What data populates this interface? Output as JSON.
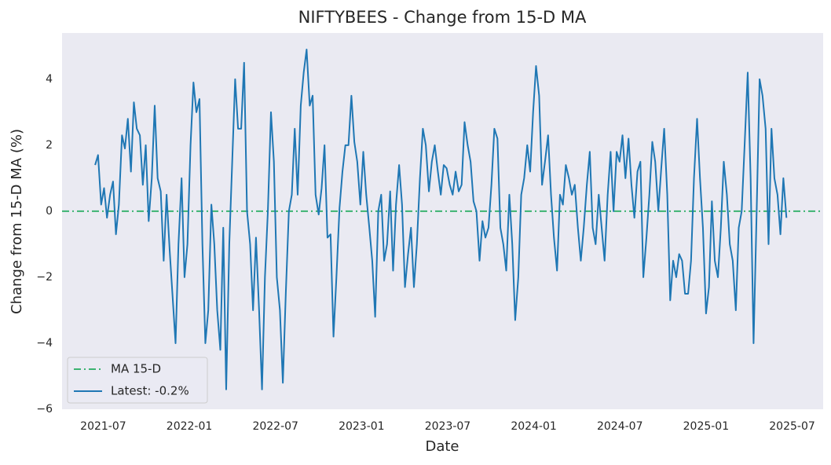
{
  "chart_data": {
    "type": "line",
    "title": "NIFTYBEES - Change from 15-D MA",
    "x_label": "Date",
    "y_label": "Change from 15-D MA (%)",
    "xlim": [
      2021.261,
      2025.68
    ],
    "xticks": [
      {
        "value": 2021.5,
        "label": "2021-07"
      },
      {
        "value": 2022.0,
        "label": "2022-01"
      },
      {
        "value": 2022.5,
        "label": "2022-07"
      },
      {
        "value": 2023.0,
        "label": "2023-01"
      },
      {
        "value": 2023.5,
        "label": "2023-07"
      },
      {
        "value": 2024.0,
        "label": "2024-01"
      },
      {
        "value": 2024.5,
        "label": "2024-07"
      },
      {
        "value": 2025.0,
        "label": "2025-01"
      },
      {
        "value": 2025.5,
        "label": "2025-07"
      }
    ],
    "ylim": [
      -6,
      5.4
    ],
    "yticks": [
      {
        "value": -6,
        "label": "−6"
      },
      {
        "value": -4,
        "label": "−4"
      },
      {
        "value": -2,
        "label": "−2"
      },
      0,
      2,
      4
    ],
    "grid": false,
    "legend": "lower left",
    "reference_line": {
      "name": "MA 15-D",
      "value": 0,
      "color": "#3cb371",
      "style": "dashdot"
    },
    "x": [
      2021.453,
      2021.47,
      2021.488,
      2021.505,
      2021.522,
      2021.54,
      2021.557,
      2021.574,
      2021.591,
      2021.609,
      2021.626,
      2021.643,
      2021.661,
      2021.678,
      2021.695,
      2021.713,
      2021.73,
      2021.747,
      2021.764,
      2021.782,
      2021.799,
      2021.816,
      2021.834,
      2021.851,
      2021.868,
      2021.886,
      2021.903,
      2021.92,
      2021.937,
      2021.955,
      2021.972,
      2021.989,
      2022.007,
      2022.024,
      2022.041,
      2022.059,
      2022.076,
      2022.093,
      2022.11,
      2022.128,
      2022.145,
      2022.162,
      2022.18,
      2022.197,
      2022.214,
      2022.232,
      2022.249,
      2022.266,
      2022.283,
      2022.301,
      2022.318,
      2022.335,
      2022.353,
      2022.37,
      2022.387,
      2022.405,
      2022.422,
      2022.439,
      2022.456,
      2022.474,
      2022.491,
      2022.508,
      2022.526,
      2022.543,
      2022.56,
      2022.578,
      2022.595,
      2022.612,
      2022.629,
      2022.647,
      2022.664,
      2022.681,
      2022.699,
      2022.716,
      2022.733,
      2022.751,
      2022.768,
      2022.785,
      2022.802,
      2022.82,
      2022.837,
      2022.854,
      2022.872,
      2022.889,
      2022.906,
      2022.924,
      2022.941,
      2022.958,
      2022.975,
      2022.993,
      2023.01,
      2023.027,
      2023.045,
      2023.062,
      2023.079,
      2023.097,
      2023.114,
      2023.131,
      2023.148,
      2023.166,
      2023.183,
      2023.2,
      2023.218,
      2023.235,
      2023.252,
      2023.27,
      2023.287,
      2023.304,
      2023.321,
      2023.339,
      2023.356,
      2023.373,
      2023.391,
      2023.408,
      2023.425,
      2023.443,
      2023.46,
      2023.477,
      2023.494,
      2023.512,
      2023.529,
      2023.546,
      2023.564,
      2023.581,
      2023.598,
      2023.616,
      2023.633,
      2023.65,
      2023.667,
      2023.685,
      2023.702,
      2023.719,
      2023.737,
      2023.754,
      2023.771,
      2023.789,
      2023.806,
      2023.823,
      2023.84,
      2023.858,
      2023.875,
      2023.892,
      2023.91,
      2023.927,
      2023.944,
      2023.962,
      2023.979,
      2023.996,
      2024.013,
      2024.031,
      2024.048,
      2024.065,
      2024.083,
      2024.1,
      2024.117,
      2024.135,
      2024.152,
      2024.169,
      2024.186,
      2024.204,
      2024.221,
      2024.238,
      2024.256,
      2024.273,
      2024.29,
      2024.308,
      2024.325,
      2024.342,
      2024.359,
      2024.377,
      2024.394,
      2024.411,
      2024.429,
      2024.446,
      2024.463,
      2024.481,
      2024.498,
      2024.515,
      2024.532,
      2024.55,
      2024.567,
      2024.584,
      2024.602,
      2024.619,
      2024.636,
      2024.654,
      2024.671,
      2024.688,
      2024.705,
      2024.723,
      2024.74,
      2024.757,
      2024.775,
      2024.792,
      2024.809,
      2024.827,
      2024.844,
      2024.861,
      2024.878,
      2024.896,
      2024.913,
      2024.93,
      2024.948,
      2024.965,
      2024.982,
      2025.0,
      2025.017,
      2025.034,
      2025.051,
      2025.069,
      2025.086,
      2025.103,
      2025.121,
      2025.138,
      2025.155,
      2025.173,
      2025.19,
      2025.207,
      2025.224,
      2025.242,
      2025.259,
      2025.276,
      2025.294,
      2025.311,
      2025.328,
      2025.346,
      2025.363,
      2025.38,
      2025.397,
      2025.415,
      2025.432,
      2025.449,
      2025.467
    ],
    "series": [
      {
        "name": "Latest: -0.2%",
        "color": "#1f77b4",
        "values": [
          1.4,
          1.7,
          0.2,
          0.7,
          -0.2,
          0.5,
          0.9,
          -0.7,
          0.2,
          2.3,
          1.9,
          2.8,
          1.2,
          3.3,
          2.5,
          2.3,
          0.8,
          2.0,
          -0.3,
          1.0,
          3.2,
          1.0,
          0.6,
          -1.5,
          0.5,
          -1.2,
          -2.6,
          -4.0,
          -1.0,
          1.0,
          -2.0,
          -1.0,
          2.0,
          3.9,
          3.0,
          3.4,
          -1.0,
          -4.0,
          -3.0,
          0.2,
          -1.0,
          -3.0,
          -4.2,
          -0.5,
          -5.4,
          -1.0,
          1.5,
          4.0,
          2.5,
          2.5,
          4.5,
          0.0,
          -1.0,
          -3.0,
          -0.8,
          -3.0,
          -5.4,
          -2.0,
          0.0,
          3.0,
          1.5,
          -2.0,
          -3.0,
          -5.2,
          -2.5,
          0.0,
          0.5,
          2.5,
          0.5,
          3.2,
          4.2,
          4.9,
          3.2,
          3.5,
          0.5,
          -0.1,
          0.7,
          2.0,
          -0.8,
          -0.7,
          -3.8,
          -2.0,
          0.1,
          1.2,
          2.0,
          2.0,
          3.5,
          2.1,
          1.5,
          0.2,
          1.8,
          0.5,
          -0.5,
          -1.5,
          -3.2,
          0.0,
          0.5,
          -1.5,
          -1.0,
          0.6,
          -1.8,
          0.2,
          1.4,
          0.2,
          -2.3,
          -1.3,
          -0.5,
          -2.3,
          -1.0,
          1.0,
          2.5,
          2.0,
          0.6,
          1.5,
          2.0,
          1.2,
          0.5,
          1.4,
          1.3,
          0.8,
          0.5,
          1.2,
          0.6,
          0.8,
          2.7,
          2.0,
          1.5,
          0.3,
          0.0,
          -1.5,
          -0.3,
          -0.8,
          -0.5,
          0.8,
          2.5,
          2.2,
          -0.5,
          -1.0,
          -1.8,
          0.5,
          -1.0,
          -3.3,
          -2.0,
          0.5,
          1.0,
          2.0,
          1.2,
          3.0,
          4.4,
          3.5,
          0.8,
          1.5,
          2.3,
          0.5,
          -0.8,
          -1.8,
          0.5,
          0.2,
          1.4,
          1.0,
          0.5,
          0.8,
          -0.5,
          -1.5,
          -0.5,
          0.8,
          1.8,
          -0.5,
          -1.0,
          0.5,
          -0.5,
          -1.5,
          0.5,
          1.8,
          0.0,
          1.8,
          1.5,
          2.3,
          1.0,
          2.2,
          0.8,
          -0.2,
          1.2,
          1.5,
          -2.0,
          -0.8,
          0.5,
          2.1,
          1.5,
          0.0,
          1.3,
          2.5,
          0.5,
          -2.7,
          -1.5,
          -2.0,
          -1.3,
          -1.5,
          -2.5,
          -2.5,
          -1.5,
          1.0,
          2.8,
          1.0,
          -0.5,
          -3.1,
          -2.3,
          0.3,
          -1.5,
          -2.0,
          -0.5,
          1.5,
          0.5,
          -1.0,
          -1.5,
          -3.0,
          -0.5,
          0.0,
          2.0,
          4.2,
          1.0,
          -4.0,
          0.0,
          4.0,
          3.5,
          2.5,
          -1.0,
          2.5,
          1.0,
          0.5,
          -0.7,
          1.0,
          -0.2
        ]
      }
    ]
  }
}
